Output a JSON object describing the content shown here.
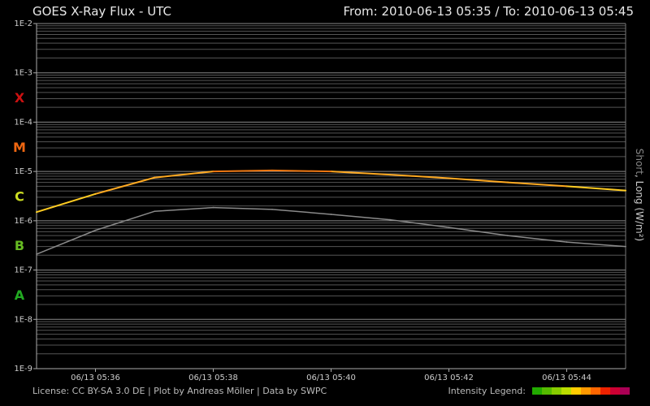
{
  "header": {
    "title": "GOES X-Ray Flux - UTC",
    "range": "From: 2010-06-13 05:35  /  To: 2010-06-13 05:45"
  },
  "footer": {
    "credits": "License: CC BY-SA 3.0 DE | Plot by Andreas Möller | Data by SWPC",
    "legend_label": "Intensity Legend:",
    "legend_colors": [
      "#22aa00",
      "#55bb00",
      "#88cc00",
      "#bbdd00",
      "#ffcc00",
      "#ff9900",
      "#ff6600",
      "#ee2200",
      "#cc0033",
      "#aa0055"
    ]
  },
  "y_label": {
    "short": "Short",
    "separator": ", ",
    "long": "Long (W/m²)"
  },
  "chart_data": {
    "type": "line",
    "y_scale": "log",
    "ylim": [
      1e-09,
      0.01
    ],
    "y_ticks": [
      {
        "value": 0.01,
        "label": "1E-2"
      },
      {
        "value": 0.001,
        "label": "1E-3"
      },
      {
        "value": 0.0001,
        "label": "1E-4"
      },
      {
        "value": 1e-05,
        "label": "1E-5"
      },
      {
        "value": 1e-06,
        "label": "1E-6"
      },
      {
        "value": 1e-07,
        "label": "1E-7"
      },
      {
        "value": 1e-08,
        "label": "1E-8"
      },
      {
        "value": 1e-09,
        "label": "1E-9"
      }
    ],
    "flare_classes": [
      {
        "label": "X",
        "color": "#cc1111",
        "value": 0.000316
      },
      {
        "label": "M",
        "color": "#ee6611",
        "value": 3.16e-05
      },
      {
        "label": "C",
        "color": "#ccdd22",
        "value": 3.16e-06
      },
      {
        "label": "B",
        "color": "#66bb22",
        "value": 3.16e-07
      },
      {
        "label": "A",
        "color": "#22aa22",
        "value": 3.16e-08
      }
    ],
    "xlim": [
      "05:35",
      "05:45"
    ],
    "x_ticks": [
      {
        "value": "05:36",
        "label": "06/13 05:36"
      },
      {
        "value": "05:38",
        "label": "06/13 05:38"
      },
      {
        "value": "05:40",
        "label": "06/13 05:40"
      },
      {
        "value": "05:42",
        "label": "06/13 05:42"
      },
      {
        "value": "05:44",
        "label": "06/13 05:44"
      }
    ],
    "grid": true,
    "series": [
      {
        "name": "Long",
        "x": [
          "05:35",
          "05:36",
          "05:37",
          "05:38",
          "05:39",
          "05:40",
          "05:41",
          "05:42",
          "05:43",
          "05:44",
          "05:45"
        ],
        "y": [
          1.5e-06,
          3.5e-06,
          7.5e-06,
          1e-05,
          1.05e-05,
          1e-05,
          8.6e-06,
          7.3e-06,
          6e-06,
          5e-06,
          4.1e-06
        ]
      },
      {
        "name": "Short",
        "x": [
          "05:35",
          "05:36",
          "05:37",
          "05:38",
          "05:39",
          "05:40",
          "05:41",
          "05:42",
          "05:43",
          "05:44",
          "05:45"
        ],
        "y": [
          2.1e-07,
          6.4e-07,
          1.55e-06,
          1.85e-06,
          1.7e-06,
          1.35e-06,
          1.05e-06,
          7.3e-07,
          5e-07,
          3.7e-07,
          3e-07
        ]
      }
    ]
  }
}
